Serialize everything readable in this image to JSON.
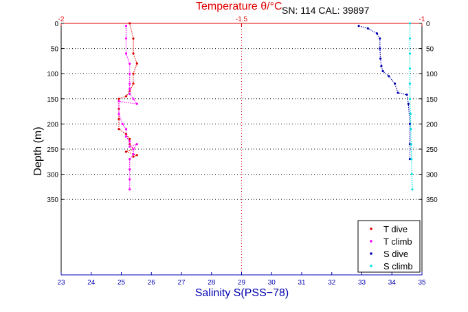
{
  "chart_data": {
    "type": "scatter",
    "title": "Temperature θ/°C",
    "serial": "SN: 114  CAL: 39897",
    "xlabel": "Salinity S(PSS−78)",
    "ylabel": "Depth (m)",
    "x_bottom": {
      "lim": [
        23,
        35
      ],
      "ticks": [
        "23",
        "24",
        "25",
        "26",
        "27",
        "28",
        "29",
        "30",
        "31",
        "32",
        "33",
        "34",
        "35"
      ]
    },
    "x_top": {
      "lim": [
        -2,
        -1
      ],
      "ticks": [
        "-2",
        "-1.5",
        "-1"
      ]
    },
    "y": {
      "lim": [
        0,
        500
      ],
      "reversed": true,
      "ticks": [
        "0",
        "50",
        "100",
        "150",
        "200",
        "250",
        "300",
        "350"
      ]
    },
    "grid": "dotted horizontal at labeled depths; dotted vertical at -1.5",
    "legend": {
      "position": "bottom-right",
      "entries": [
        "T dive",
        "T climb",
        "S dive",
        "S climb"
      ]
    },
    "colors": {
      "T dive": "#e00000",
      "T climb": "#ff00ff",
      "S dive": "#0000b0",
      "S climb": "#00e0e0",
      "axis_temp": "#e00000",
      "axis_sal": "#0000b0"
    },
    "series": [
      {
        "name": "T dive",
        "axis": "temperature",
        "x": [
          -1.81,
          -1.8,
          -1.8,
          -1.79,
          -1.8,
          -1.8,
          -1.81,
          -1.82,
          -1.84,
          -1.84,
          -1.84,
          -1.84,
          -1.82,
          -1.81,
          -1.81,
          -1.8,
          -1.82,
          -1.8,
          -1.79,
          -1.8
        ],
        "y": [
          0,
          30,
          60,
          80,
          100,
          120,
          135,
          145,
          150,
          170,
          190,
          210,
          220,
          230,
          240,
          250,
          255,
          260,
          262,
          265
        ]
      },
      {
        "name": "T climb",
        "axis": "temperature",
        "x": [
          -1.82,
          -1.82,
          -1.82,
          -1.81,
          -1.81,
          -1.81,
          -1.81,
          -1.81,
          -1.8,
          -1.79,
          -1.84,
          -1.84,
          -1.83,
          -1.82,
          -1.82,
          -1.81,
          -1.81,
          -1.79,
          -1.8,
          -1.8,
          -1.81,
          -1.81,
          -1.81,
          -1.81
        ],
        "y": [
          5,
          30,
          60,
          80,
          100,
          120,
          130,
          140,
          150,
          160,
          155,
          180,
          200,
          210,
          225,
          235,
          245,
          240,
          250,
          260,
          270,
          290,
          310,
          330
        ]
      },
      {
        "name": "S dive",
        "axis": "salinity",
        "x": [
          32.9,
          33.2,
          33.5,
          33.6,
          33.6,
          33.62,
          33.65,
          33.7,
          33.9,
          34.1,
          34.2,
          34.5,
          34.55,
          34.6,
          34.6,
          34.6
        ],
        "y": [
          5,
          10,
          20,
          30,
          50,
          70,
          85,
          95,
          105,
          120,
          138,
          142,
          160,
          200,
          240,
          270
        ]
      },
      {
        "name": "S climb",
        "axis": "salinity",
        "x": [
          34.6,
          34.6,
          34.6,
          34.6,
          34.6,
          34.6,
          34.62,
          34.63,
          34.64,
          34.65,
          34.66,
          34.68
        ],
        "y": [
          0,
          30,
          60,
          90,
          120,
          150,
          180,
          210,
          240,
          270,
          300,
          330
        ]
      }
    ]
  }
}
